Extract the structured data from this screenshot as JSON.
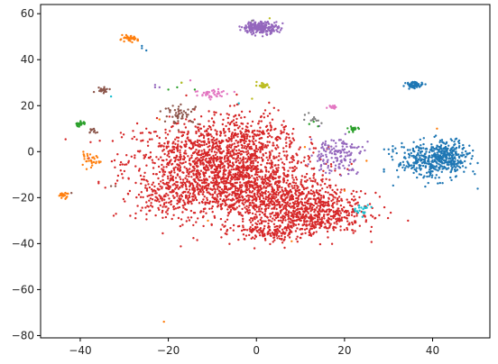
{
  "chart_data": {
    "type": "scatter",
    "title": "",
    "xlabel": "",
    "ylabel": "",
    "xlim": [
      -49,
      53
    ],
    "ylim": [
      -81,
      64
    ],
    "legend": "none",
    "grid": false,
    "x_ticks": [
      -40,
      -20,
      0,
      20,
      40
    ],
    "y_ticks": [
      -80,
      -60,
      -40,
      -20,
      0,
      20,
      40,
      60
    ],
    "x_tick_labels": [
      "−40",
      "−20",
      "0",
      "20",
      "40"
    ],
    "y_tick_labels": [
      "−80",
      "−60",
      "−40",
      "−20",
      "0",
      "20",
      "40",
      "60"
    ],
    "point_size_approx": 2,
    "colors": {
      "blue": "#1f77b4",
      "orange": "#ff7f0e",
      "green": "#2ca02c",
      "red": "#d62728",
      "purple": "#9467bd",
      "brown": "#8c564b",
      "pink": "#e377c2",
      "gray": "#7f7f7f",
      "olive": "#bcbd22",
      "cyan": "#17becf"
    },
    "series": [
      {
        "color_key": "red",
        "clusters": [
          {
            "x": -12,
            "y": -5,
            "sx": 9,
            "sy": 9,
            "n": 900
          },
          {
            "x": -2,
            "y": -15,
            "sx": 9,
            "sy": 8,
            "n": 900
          },
          {
            "x": 8,
            "y": -24,
            "sx": 8,
            "sy": 6,
            "n": 550
          },
          {
            "x": 14,
            "y": -28,
            "sx": 5,
            "sy": 4,
            "n": 250
          },
          {
            "x": -2,
            "y": 5,
            "sx": 6,
            "sy": 6,
            "n": 300
          },
          {
            "x": 3,
            "y": -35,
            "sx": 4,
            "sy": 2,
            "n": 120
          },
          {
            "x": -19,
            "y": -20,
            "sx": 4,
            "sy": 4,
            "n": 150
          }
        ],
        "points": [
          [
            -28,
            9
          ],
          [
            -25,
            10
          ],
          [
            -22,
            6
          ],
          [
            4,
            19
          ],
          [
            2,
            18
          ],
          [
            5,
            18
          ],
          [
            -5,
            20
          ],
          [
            1,
            15
          ],
          [
            18,
            -18
          ],
          [
            19,
            -10
          ]
        ]
      },
      {
        "color_key": "blue",
        "clusters": [
          {
            "x": 40,
            "y": -4,
            "sx": 4,
            "sy": 4,
            "n": 380
          },
          {
            "x": 44,
            "y": -1,
            "sx": 2,
            "sy": 3,
            "n": 120
          },
          {
            "x": 36,
            "y": 29,
            "sx": 1,
            "sy": 0.7,
            "n": 60
          }
        ],
        "points": [
          [
            -26,
            45
          ],
          [
            -26,
            46
          ],
          [
            -25,
            44
          ],
          [
            30,
            1
          ],
          [
            31,
            0
          ],
          [
            29,
            1
          ],
          [
            33,
            2
          ]
        ]
      },
      {
        "color_key": "purple",
        "clusters": [
          {
            "x": 1,
            "y": 54,
            "sx": 2,
            "sy": 1.3,
            "n": 220
          },
          {
            "x": 18,
            "y": -1,
            "sx": 3,
            "sy": 4,
            "n": 150
          }
        ],
        "points": [
          [
            -23,
            28
          ],
          [
            -23,
            29
          ],
          [
            -22,
            28
          ],
          [
            -1,
            51
          ],
          [
            15,
            2
          ],
          [
            21,
            -6
          ],
          [
            22,
            -8
          ],
          [
            23,
            -9
          ]
        ]
      },
      {
        "color_key": "orange",
        "clusters": [
          {
            "x": -29,
            "y": 49,
            "sx": 1,
            "sy": 0.6,
            "n": 45
          },
          {
            "x": -38,
            "y": -4,
            "sx": 1.3,
            "sy": 1.5,
            "n": 30
          },
          {
            "x": -44,
            "y": -19,
            "sx": 0.6,
            "sy": 0.6,
            "n": 20
          }
        ],
        "points": [
          [
            -21,
            -74
          ],
          [
            -11,
            -30
          ],
          [
            8,
            -39
          ],
          [
            11,
            2
          ],
          [
            20,
            -17
          ],
          [
            25,
            -4
          ],
          [
            41,
            10
          ],
          [
            -22,
            14
          ]
        ]
      },
      {
        "color_key": "green",
        "clusters": [
          {
            "x": -40,
            "y": 12,
            "sx": 0.6,
            "sy": 0.6,
            "n": 25
          },
          {
            "x": 22,
            "y": 10,
            "sx": 0.6,
            "sy": 0.6,
            "n": 20
          }
        ],
        "points": [
          [
            -20,
            27
          ],
          [
            -14,
            27
          ],
          [
            -18,
            28
          ],
          [
            -17,
            30
          ],
          [
            12,
            12
          ],
          [
            13,
            13
          ],
          [
            14,
            11
          ]
        ]
      },
      {
        "color_key": "brown",
        "clusters": [
          {
            "x": -17,
            "y": 16,
            "sx": 2,
            "sy": 2,
            "n": 50
          },
          {
            "x": -35,
            "y": 27,
            "sx": 0.8,
            "sy": 0.6,
            "n": 20
          },
          {
            "x": -37,
            "y": 9,
            "sx": 0.8,
            "sy": 0.7,
            "n": 10
          }
        ],
        "points": [
          [
            -32,
            -15
          ],
          [
            -33,
            -15
          ],
          [
            -42,
            -18
          ]
        ]
      },
      {
        "color_key": "pink",
        "clusters": [
          {
            "x": -10,
            "y": 25,
            "sx": 2,
            "sy": 1.3,
            "n": 40
          },
          {
            "x": 17.5,
            "y": 19.5,
            "sx": 0.6,
            "sy": 0.4,
            "n": 15
          }
        ],
        "points": [
          [
            -5,
            26
          ],
          [
            -15,
            31
          ]
        ]
      },
      {
        "color_key": "olive",
        "clusters": [
          {
            "x": 1.5,
            "y": 29,
            "sx": 0.7,
            "sy": 0.6,
            "n": 25
          }
        ],
        "points": [
          [
            3,
            58
          ],
          [
            -17,
            30
          ],
          [
            -1,
            23
          ]
        ]
      },
      {
        "color_key": "gray",
        "clusters": [
          {
            "x": 13,
            "y": 14,
            "sx": 1,
            "sy": 1,
            "n": 10
          }
        ],
        "points": [
          [
            11,
            16
          ],
          [
            -1,
            57
          ]
        ]
      },
      {
        "color_key": "cyan",
        "clusters": [
          {
            "x": 24,
            "y": -25,
            "sx": 1,
            "sy": 1,
            "n": 20
          }
        ],
        "points": [
          [
            -33,
            24
          ],
          [
            -4,
            21
          ]
        ]
      }
    ]
  }
}
